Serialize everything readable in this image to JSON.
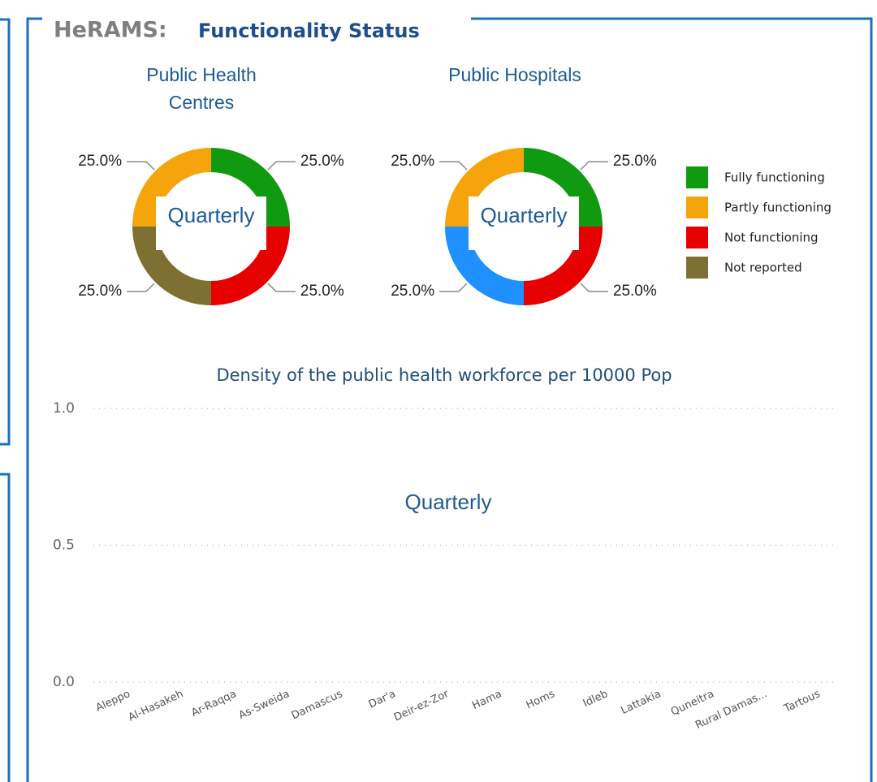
{
  "header": {
    "brand": "HeRAMS:",
    "title": "Functionality Status"
  },
  "legend": [
    {
      "name": "Fully functioning",
      "color": "#109a10"
    },
    {
      "name": "Partly functioning",
      "color": "#f5a40c"
    },
    {
      "name": "Not functioning",
      "color": "#e60000"
    },
    {
      "name": "Not reported",
      "color": "#7d7032"
    }
  ],
  "chart_data": [
    {
      "type": "pie",
      "title": "Public Health Centres",
      "center_label": "Quarterly",
      "values": [
        25,
        25,
        25,
        25
      ],
      "value_labels": [
        "25.0%",
        "25.0%",
        "25.0%",
        "25.0%"
      ],
      "colors": [
        "#109a10",
        "#e60000",
        "#7d7032",
        "#f5a40c"
      ]
    },
    {
      "type": "pie",
      "title": "Public Hospitals",
      "center_label": "Quarterly",
      "values": [
        25,
        25,
        25,
        25
      ],
      "value_labels": [
        "25.0%",
        "25.0%",
        "25.0%",
        "25.0%"
      ],
      "colors": [
        "#109a10",
        "#e60000",
        "#1e90ff",
        "#f5a40c"
      ]
    },
    {
      "type": "bar",
      "title": "Density of the public health workforce per 10000 Pop",
      "center_label": "Quarterly",
      "categories": [
        "Aleppo",
        "Al-Hasakeh",
        "Ar-Raqqa",
        "As-Sweida",
        "Damascus",
        "Dar'a",
        "Deir-ez-Zor",
        "Hama",
        "Homs",
        "Idleb",
        "Lattakia",
        "Quneitra",
        "Rural Damas...",
        "Tartous"
      ],
      "ylim": [
        0,
        1
      ],
      "yticks": [
        {
          "value": 0,
          "label": "0.0"
        },
        {
          "value": 0.5,
          "label": "0.5"
        },
        {
          "value": 1,
          "label": "1.0"
        }
      ],
      "grid": true
    }
  ]
}
